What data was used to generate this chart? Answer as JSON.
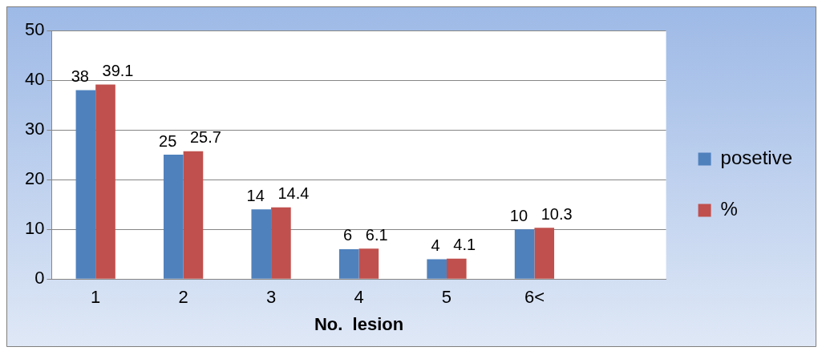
{
  "chart_data": {
    "type": "bar",
    "xlabel": "No.  lesion",
    "categories": [
      "1",
      "2",
      "3",
      "4",
      "5",
      "6<",
      null
    ],
    "series": [
      {
        "name": "posetive",
        "color": "#4f81bd",
        "values": [
          38,
          25,
          14,
          6,
          4,
          10,
          null
        ]
      },
      {
        "name": "%",
        "color": "#c0504d",
        "values": [
          39.1,
          25.7,
          14.4,
          6.1,
          4.1,
          10.3,
          null
        ]
      }
    ],
    "ylim": [
      0,
      50
    ],
    "yticks": [
      0,
      10,
      20,
      30,
      40,
      50
    ],
    "grid": "y",
    "legend": "right",
    "data_labels": true
  }
}
